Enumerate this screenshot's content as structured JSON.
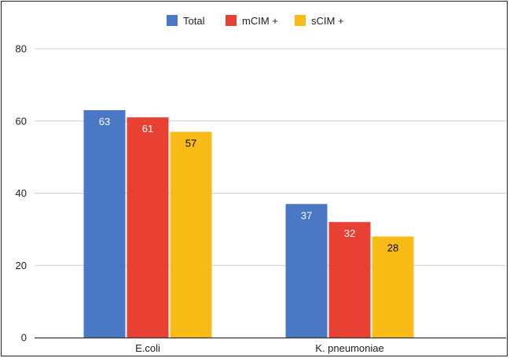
{
  "chart_data": {
    "type": "bar",
    "categories": [
      "E.coli",
      "K. pneumoniae"
    ],
    "series": [
      {
        "name": "Total",
        "values": [
          63,
          37
        ],
        "color": "#4a78c4",
        "label_color": "#ffffff"
      },
      {
        "name": "mCIM +",
        "values": [
          61,
          32
        ],
        "color": "#e84133",
        "label_color": "#ffffff"
      },
      {
        "name": "sCIM +",
        "values": [
          57,
          28
        ],
        "color": "#f9bb16",
        "label_color": "#000000"
      }
    ],
    "title": "",
    "xlabel": "",
    "ylabel": "",
    "ylim": [
      0,
      80
    ],
    "yticks": [
      0,
      20,
      40,
      60,
      80
    ],
    "grid": true,
    "legend_position": "top-center",
    "data_labels": true
  }
}
